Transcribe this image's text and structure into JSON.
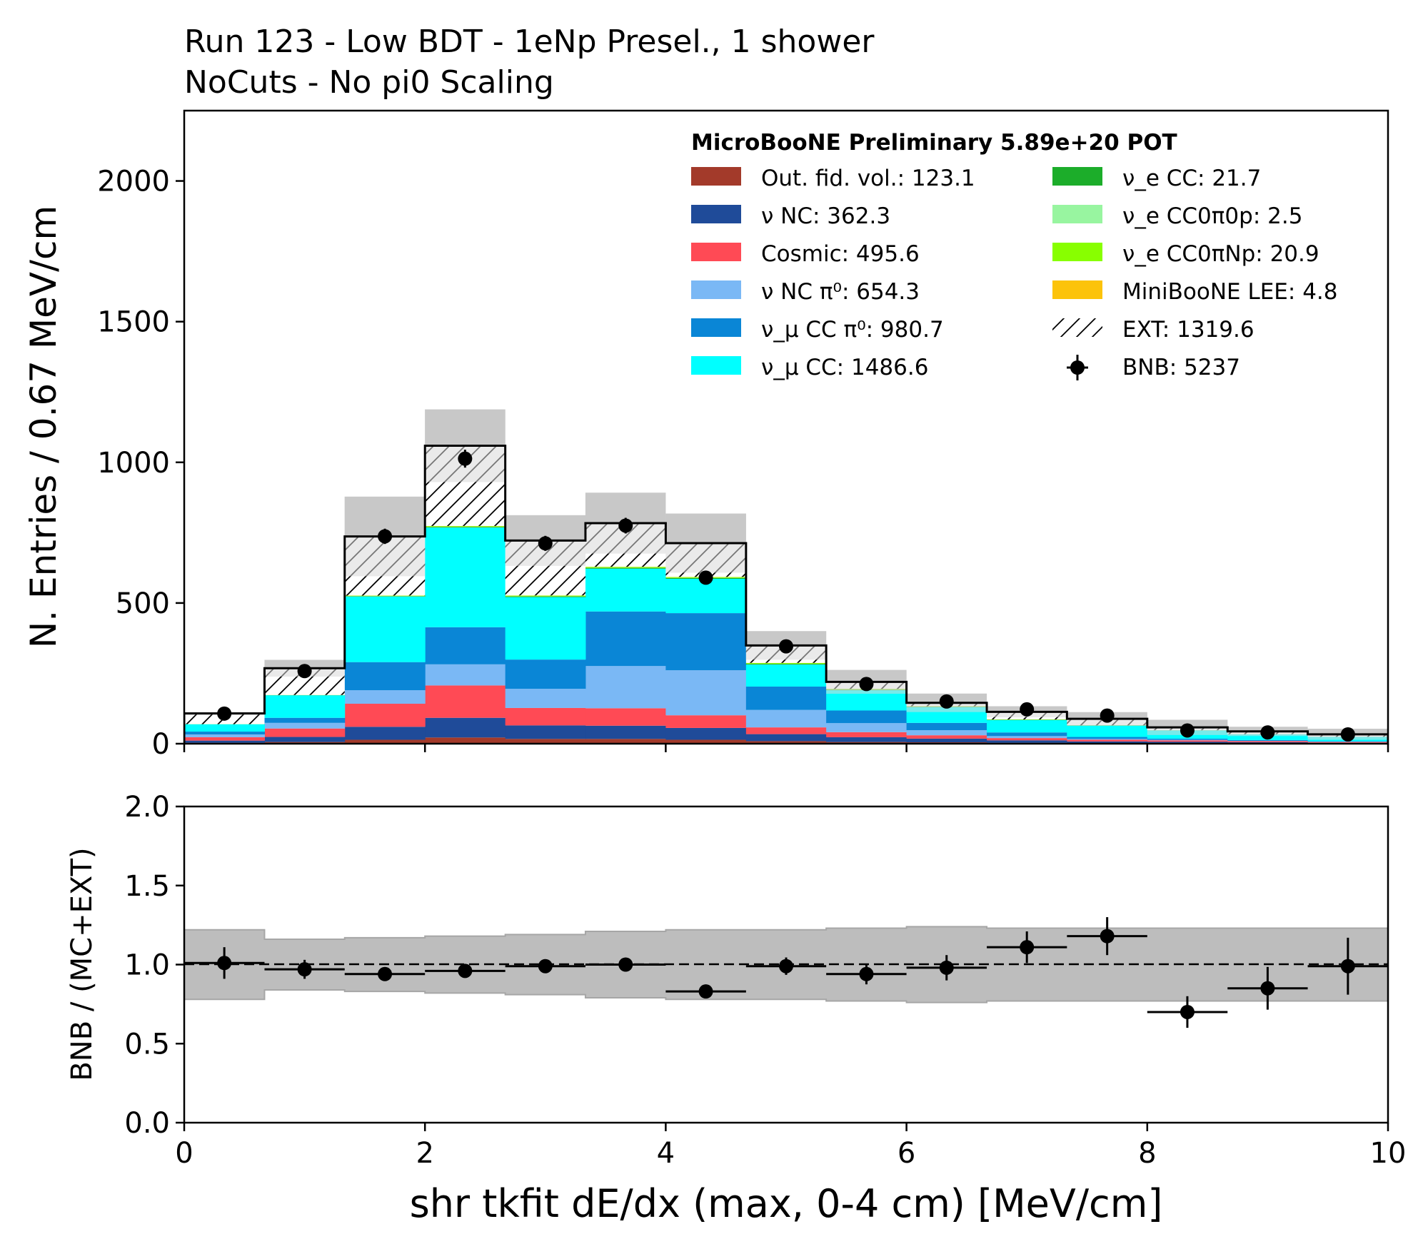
{
  "title_lines": [
    "Run 123 - Low BDT - 1eNp Presel., 1 shower",
    "NoCuts - No pi0 Scaling"
  ],
  "legend_title": "MicroBooNE Preliminary 5.89e+20 POT",
  "xlabel": "shr tkfit dE/dx (max, 0-4 cm) [MeV/cm]",
  "chart_data": [
    {
      "type": "bar",
      "stacked": true,
      "title": "Run 123 - Low BDT - 1eNp Presel., 1 shower\nNoCuts - No pi0 Scaling",
      "xlabel": "shr tkfit dE/dx (max, 0-4 cm) [MeV/cm]",
      "ylabel": "N. Entries / 0.67 MeV/cm",
      "xlim": [
        0,
        10
      ],
      "ylim": [
        0,
        2250
      ],
      "x_ticks": [
        "0",
        "2",
        "4",
        "6",
        "8",
        "10"
      ],
      "y_ticks": [
        "0",
        "500",
        "1000",
        "1500",
        "2000"
      ],
      "bin_edges": [
        0,
        0.667,
        1.333,
        2.0,
        2.667,
        3.333,
        4.0,
        4.667,
        5.333,
        6.0,
        6.667,
        7.333,
        8.0,
        8.667,
        9.333,
        10.0
      ],
      "series": [
        {
          "name": "Out. fid. vol.: 123.1",
          "color": "#a33a2a",
          "values": [
            3,
            6,
            14,
            22,
            17,
            17,
            14,
            9,
            6,
            5,
            3,
            2,
            2,
            1,
            1
          ]
        },
        {
          "name": "ν NC: 362.3",
          "color": "#1f4b99",
          "values": [
            8,
            18,
            46,
            70,
            48,
            47,
            42,
            25,
            17,
            13,
            9,
            6,
            5,
            4,
            2
          ]
        },
        {
          "name": "Cosmic: 495.6",
          "color": "#ff4a55",
          "values": [
            12,
            30,
            82,
            115,
            62,
            62,
            45,
            24,
            18,
            12,
            8,
            6,
            5,
            4,
            3
          ]
        },
        {
          "name": "ν NC π⁰: 654.3",
          "color": "#7ab8f5",
          "values": [
            10,
            20,
            48,
            75,
            68,
            150,
            160,
            62,
            32,
            18,
            7,
            3,
            2,
            1,
            1
          ]
        },
        {
          "name": "ν_μ CC π⁰: 980.7",
          "color": "#0a86d6",
          "values": [
            10,
            18,
            100,
            132,
            104,
            194,
            203,
            83,
            45,
            26,
            13,
            7,
            4,
            3,
            2
          ]
        },
        {
          "name": "ν_μ CC: 1486.6",
          "color": "#00ffff",
          "values": [
            26,
            80,
            233,
            354,
            222,
            152,
            122,
            78,
            72,
            56,
            44,
            40,
            29,
            20,
            15
          ]
        },
        {
          "name": "ν_e CC: 21.7",
          "color": "#1cad2a",
          "values": [
            0.2,
            0.5,
            1.5,
            2.5,
            2.5,
            3.0,
            3.0,
            2.8,
            2.0,
            1.5,
            1.0,
            0.6,
            0.4,
            0.3,
            0.2
          ]
        },
        {
          "name": "ν_e CC0π0p: 2.5",
          "color": "#98f5a0",
          "values": [
            0.1,
            0.1,
            0.2,
            0.3,
            0.3,
            0.3,
            0.3,
            0.2,
            0.2,
            0.1,
            0.1,
            0.1,
            0.05,
            0.05,
            0.05
          ]
        },
        {
          "name": "ν_e CC0πNp: 20.9",
          "color": "#88ff00",
          "values": [
            0.2,
            0.5,
            1.5,
            2.5,
            2.5,
            2.8,
            2.8,
            2.6,
            2.0,
            1.3,
            1.0,
            0.6,
            0.4,
            0.2,
            0.1
          ]
        },
        {
          "name": "MiniBooNE LEE: 4.8",
          "color": "#fcc30a",
          "values": [
            0.05,
            0.1,
            0.3,
            0.6,
            0.6,
            0.7,
            0.7,
            0.6,
            0.5,
            0.3,
            0.2,
            0.1,
            0.05,
            0.05,
            0.05
          ]
        },
        {
          "name": "EXT: 1319.6",
          "color": "#ffffff",
          "hatch": true,
          "values": [
            38,
            95,
            210,
            285,
            195,
            155,
            120,
            62,
            25,
            12,
            27,
            23,
            10,
            10,
            9
          ]
        }
      ],
      "data_points": {
        "name": "BNB: 5237",
        "x": [
          0.333,
          1.0,
          1.667,
          2.333,
          3.0,
          3.667,
          4.333,
          5.0,
          5.667,
          6.333,
          7.0,
          7.667,
          8.333,
          9.0,
          9.667
        ],
        "values": [
          107,
          258,
          737,
          1013,
          712,
          775,
          590,
          346,
          212,
          150,
          122,
          100,
          47,
          40,
          33
        ]
      },
      "uncertainty_band_upper": [
        112,
        298,
        878,
        1188,
        812,
        892,
        818,
        400,
        262,
        178,
        133,
        112,
        85,
        60,
        53
      ],
      "uncertainty_band_color": "#b3b3b3",
      "legend_position": "top-right"
    },
    {
      "type": "scatter",
      "ylabel": "BNB / (MC+EXT)",
      "xlim": [
        0,
        10
      ],
      "ylim": [
        0,
        2
      ],
      "x_ticks": [
        "0",
        "2",
        "4",
        "6",
        "8",
        "10"
      ],
      "y_ticks": [
        "0.0",
        "0.5",
        "1.0",
        "1.5",
        "2.0"
      ],
      "reference_line": 1.0,
      "x": [
        0.333,
        1.0,
        1.667,
        2.333,
        3.0,
        3.667,
        4.333,
        5.0,
        5.667,
        6.333,
        7.0,
        7.667,
        8.333,
        9.0,
        9.667
      ],
      "values": [
        1.01,
        0.97,
        0.94,
        0.96,
        0.99,
        1.0,
        0.83,
        0.99,
        0.94,
        0.98,
        1.11,
        1.18,
        0.7,
        0.85,
        0.99
      ],
      "errors": [
        0.1,
        0.06,
        0.035,
        0.03,
        0.04,
        0.035,
        0.035,
        0.055,
        0.065,
        0.08,
        0.1,
        0.12,
        0.1,
        0.135,
        0.18
      ],
      "band_low": [
        0.78,
        0.84,
        0.83,
        0.82,
        0.81,
        0.79,
        0.78,
        0.78,
        0.77,
        0.76,
        0.77,
        0.77,
        0.77,
        0.77,
        0.77
      ],
      "band_high": [
        1.22,
        1.16,
        1.17,
        1.18,
        1.19,
        1.21,
        1.22,
        1.22,
        1.23,
        1.24,
        1.23,
        1.23,
        1.23,
        1.23,
        1.23
      ]
    }
  ]
}
